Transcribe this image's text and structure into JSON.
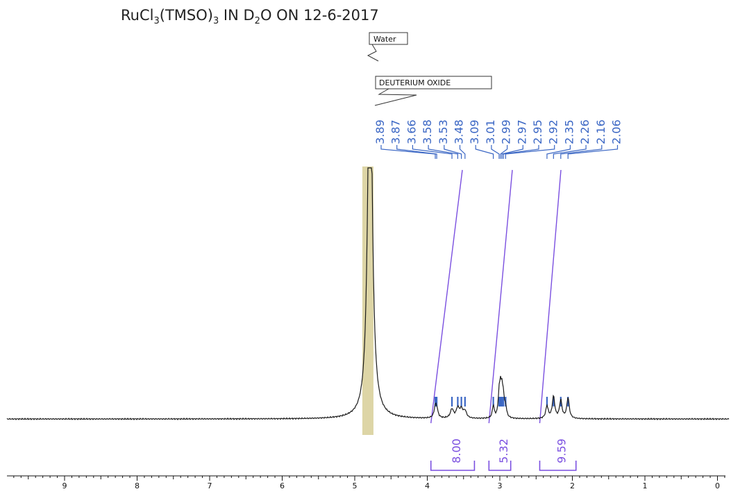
{
  "chart_data": {
    "type": "line",
    "title_main": "RuCl",
    "title_sub1": "3",
    "title_mid": "(TMSO)",
    "title_sub2": "3",
    "title_mid2": " IN D",
    "title_sub3": "2",
    "title_end": "O ON 12-6-2017",
    "xlabel": "",
    "ylabel": "",
    "xlim": [
      9.7,
      -0.1
    ],
    "x_reversed": true,
    "x_ticks": [
      "9",
      "8",
      "7",
      "6",
      "5",
      "4",
      "3",
      "2",
      "1",
      "0"
    ],
    "annotations": [
      "Water",
      "DEUTERIUM OXIDE"
    ],
    "solvent_peak_ppm": 4.79,
    "peak_labels": [
      "3.89",
      "3.87",
      "3.66",
      "3.58",
      "3.53",
      "3.48",
      "3.09",
      "3.01",
      "2.99",
      "2.97",
      "2.95",
      "2.92",
      "2.35",
      "2.26",
      "2.16",
      "2.06"
    ],
    "peaks": [
      3.89,
      3.87,
      3.66,
      3.58,
      3.53,
      3.48,
      3.09,
      3.01,
      2.99,
      2.97,
      2.95,
      2.92,
      2.35,
      2.26,
      2.16,
      2.06
    ],
    "integrals": [
      {
        "from": 3.95,
        "to": 3.35,
        "value": "8.00"
      },
      {
        "from": 3.15,
        "to": 2.85,
        "value": "5.32"
      },
      {
        "from": 2.45,
        "to": 1.95,
        "value": "9.59"
      }
    ],
    "colors": {
      "spectrum": "#1a1a1a",
      "peak_labels": "#3a66c4",
      "integrals": "#7a4fe0",
      "solvent_band": "#ddd5a6"
    }
  }
}
